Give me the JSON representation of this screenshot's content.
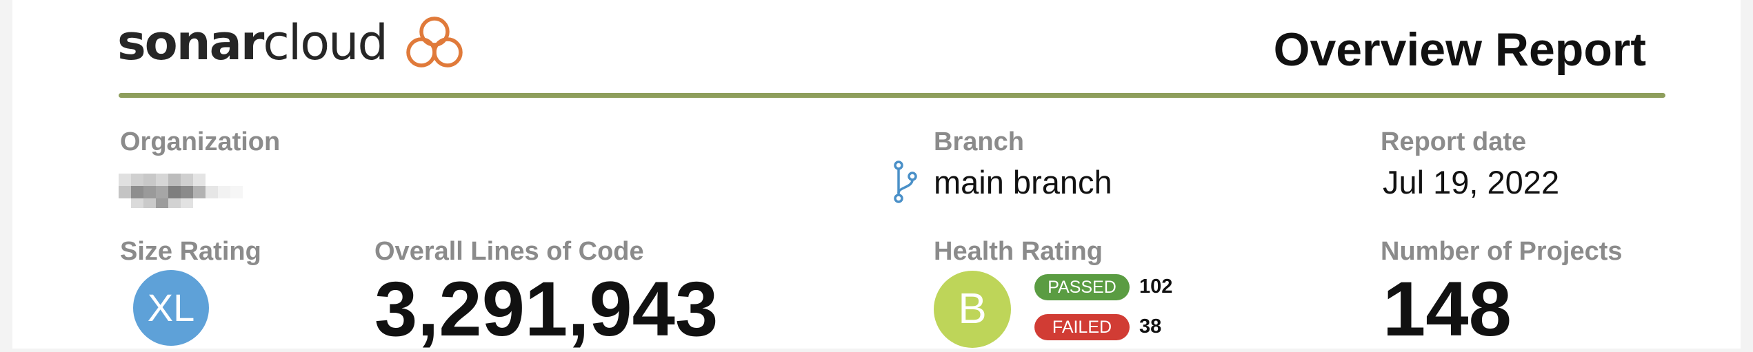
{
  "header": {
    "logo_bold": "sonar",
    "logo_regular": "cloud",
    "logo_icon": "sonarcloud-cloud-icon",
    "title": "Overview Report"
  },
  "organization": {
    "label": "Organization",
    "value_icon": "redacted-mosaic"
  },
  "branch": {
    "label": "Branch",
    "icon": "branch-icon",
    "value": "main branch"
  },
  "report_date": {
    "label": "Report date",
    "value": "Jul 19, 2022"
  },
  "size_rating": {
    "label": "Size Rating",
    "value": "XL"
  },
  "lines_of_code": {
    "label": "Overall Lines of Code",
    "value": "3,291,943"
  },
  "health_rating": {
    "label": "Health Rating",
    "grade": "B",
    "passed_label": "PASSED",
    "passed_count": "102",
    "failed_label": "FAILED",
    "failed_count": "38"
  },
  "projects": {
    "label": "Number of Projects",
    "value": "148"
  },
  "colors": {
    "accent_rule": "#8e9e5c",
    "logo_orange": "#e07a3a",
    "size_circle": "#5ea1d8",
    "health_circle": "#bed559",
    "passed": "#5a9c42",
    "failed": "#d13c34",
    "label_gray": "#8b8b8b"
  }
}
